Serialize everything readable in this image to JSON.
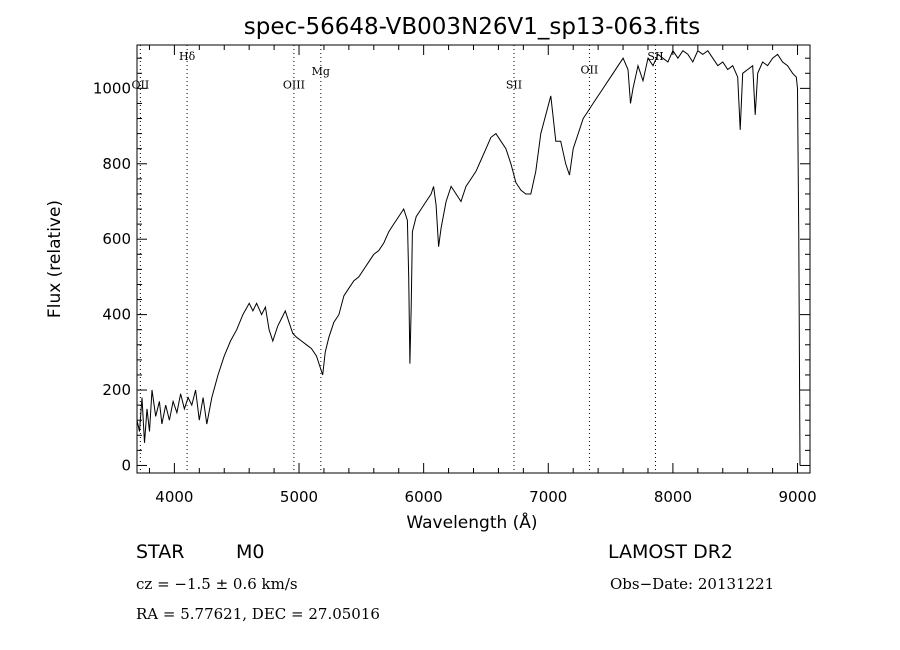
{
  "chart_data": {
    "type": "line",
    "title": "spec-56648-VB003N26V1_sp13-063.fits",
    "xlabel": "Wavelength (Å)",
    "ylabel": "Flux (relative)",
    "xlim": [
      3700,
      9100
    ],
    "ylim": [
      -20,
      1115
    ],
    "x_ticks": [
      4000,
      5000,
      6000,
      7000,
      8000,
      9000
    ],
    "y_ticks": [
      0,
      200,
      400,
      600,
      800,
      1000
    ],
    "grid": false,
    "line_color": "#000000",
    "series": [
      {
        "points": [
          [
            3700,
            120
          ],
          [
            3720,
            90
          ],
          [
            3740,
            180
          ],
          [
            3760,
            60
          ],
          [
            3780,
            150
          ],
          [
            3800,
            90
          ],
          [
            3820,
            200
          ],
          [
            3850,
            130
          ],
          [
            3880,
            170
          ],
          [
            3900,
            110
          ],
          [
            3930,
            160
          ],
          [
            3960,
            120
          ],
          [
            3990,
            170
          ],
          [
            4020,
            140
          ],
          [
            4050,
            190
          ],
          [
            4080,
            150
          ],
          [
            4110,
            180
          ],
          [
            4140,
            160
          ],
          [
            4170,
            200
          ],
          [
            4200,
            120
          ],
          [
            4230,
            180
          ],
          [
            4260,
            110
          ],
          [
            4300,
            180
          ],
          [
            4350,
            240
          ],
          [
            4400,
            290
          ],
          [
            4450,
            330
          ],
          [
            4500,
            360
          ],
          [
            4550,
            400
          ],
          [
            4600,
            430
          ],
          [
            4630,
            410
          ],
          [
            4660,
            430
          ],
          [
            4700,
            400
          ],
          [
            4730,
            420
          ],
          [
            4760,
            360
          ],
          [
            4790,
            330
          ],
          [
            4830,
            370
          ],
          [
            4860,
            390
          ],
          [
            4890,
            410
          ],
          [
            4920,
            380
          ],
          [
            4950,
            350
          ],
          [
            4980,
            340
          ],
          [
            5020,
            330
          ],
          [
            5060,
            320
          ],
          [
            5100,
            310
          ],
          [
            5140,
            290
          ],
          [
            5170,
            260
          ],
          [
            5190,
            240
          ],
          [
            5210,
            300
          ],
          [
            5240,
            340
          ],
          [
            5280,
            380
          ],
          [
            5320,
            400
          ],
          [
            5360,
            450
          ],
          [
            5400,
            470
          ],
          [
            5440,
            490
          ],
          [
            5480,
            500
          ],
          [
            5520,
            520
          ],
          [
            5560,
            540
          ],
          [
            5600,
            560
          ],
          [
            5640,
            570
          ],
          [
            5680,
            590
          ],
          [
            5720,
            620
          ],
          [
            5760,
            640
          ],
          [
            5800,
            660
          ],
          [
            5840,
            680
          ],
          [
            5870,
            650
          ],
          [
            5880,
            500
          ],
          [
            5890,
            270
          ],
          [
            5900,
            420
          ],
          [
            5910,
            620
          ],
          [
            5940,
            660
          ],
          [
            5980,
            680
          ],
          [
            6020,
            700
          ],
          [
            6060,
            720
          ],
          [
            6080,
            740
          ],
          [
            6100,
            690
          ],
          [
            6120,
            580
          ],
          [
            6140,
            630
          ],
          [
            6180,
            700
          ],
          [
            6220,
            740
          ],
          [
            6260,
            720
          ],
          [
            6300,
            700
          ],
          [
            6340,
            740
          ],
          [
            6380,
            760
          ],
          [
            6420,
            780
          ],
          [
            6460,
            810
          ],
          [
            6500,
            840
          ],
          [
            6540,
            870
          ],
          [
            6580,
            880
          ],
          [
            6620,
            860
          ],
          [
            6660,
            840
          ],
          [
            6700,
            800
          ],
          [
            6740,
            750
          ],
          [
            6780,
            730
          ],
          [
            6820,
            720
          ],
          [
            6860,
            720
          ],
          [
            6900,
            780
          ],
          [
            6940,
            880
          ],
          [
            6980,
            930
          ],
          [
            7020,
            980
          ],
          [
            7040,
            920
          ],
          [
            7060,
            860
          ],
          [
            7100,
            860
          ],
          [
            7140,
            800
          ],
          [
            7170,
            770
          ],
          [
            7200,
            840
          ],
          [
            7240,
            880
          ],
          [
            7280,
            920
          ],
          [
            7320,
            940
          ],
          [
            7360,
            960
          ],
          [
            7400,
            980
          ],
          [
            7440,
            1000
          ],
          [
            7480,
            1020
          ],
          [
            7520,
            1040
          ],
          [
            7560,
            1060
          ],
          [
            7600,
            1080
          ],
          [
            7640,
            1050
          ],
          [
            7660,
            960
          ],
          [
            7680,
            1000
          ],
          [
            7720,
            1060
          ],
          [
            7760,
            1020
          ],
          [
            7800,
            1080
          ],
          [
            7840,
            1060
          ],
          [
            7880,
            1090
          ],
          [
            7920,
            1080
          ],
          [
            7960,
            1070
          ],
          [
            8000,
            1100
          ],
          [
            8040,
            1080
          ],
          [
            8080,
            1100
          ],
          [
            8120,
            1090
          ],
          [
            8160,
            1070
          ],
          [
            8200,
            1100
          ],
          [
            8240,
            1090
          ],
          [
            8280,
            1100
          ],
          [
            8320,
            1080
          ],
          [
            8360,
            1060
          ],
          [
            8400,
            1070
          ],
          [
            8440,
            1050
          ],
          [
            8480,
            1060
          ],
          [
            8520,
            1030
          ],
          [
            8540,
            890
          ],
          [
            8560,
            1040
          ],
          [
            8600,
            1050
          ],
          [
            8640,
            1060
          ],
          [
            8660,
            930
          ],
          [
            8680,
            1040
          ],
          [
            8720,
            1070
          ],
          [
            8760,
            1060
          ],
          [
            8800,
            1080
          ],
          [
            8840,
            1090
          ],
          [
            8880,
            1070
          ],
          [
            8920,
            1060
          ],
          [
            8960,
            1040
          ],
          [
            8990,
            1030
          ],
          [
            9000,
            1000
          ],
          [
            9010,
            600
          ],
          [
            9020,
            0
          ]
        ]
      }
    ],
    "line_markers": [
      {
        "label": "OII",
        "x": 3727,
        "label_y": 1000
      },
      {
        "label": "Hδ",
        "x": 4102,
        "label_y": 1075
      },
      {
        "label": "OIII",
        "x": 4959,
        "label_y": 1000
      },
      {
        "label": "Mg",
        "x": 5175,
        "label_y": 1035
      },
      {
        "label": "SII",
        "x": 6725,
        "label_y": 1000
      },
      {
        "label": "OII",
        "x": 7330,
        "label_y": 1040
      },
      {
        "label": "SII",
        "x": 7860,
        "label_y": 1075
      }
    ]
  },
  "footer": {
    "object_class": "STAR",
    "subclass": "M0",
    "survey": "LAMOST DR2",
    "cz": "cz = −1.5 ± 0.6 km/s",
    "obs_date": "Obs−Date: 20131221",
    "coords": "RA =    5.77621, DEC =   27.05016"
  }
}
